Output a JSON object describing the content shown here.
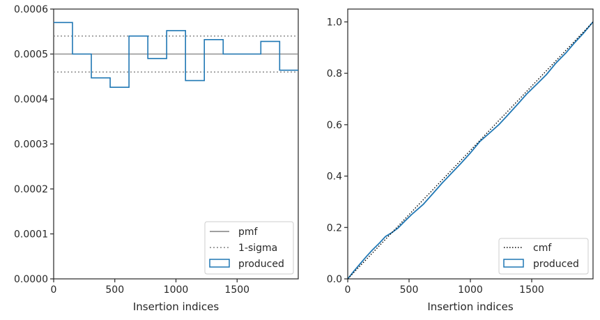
{
  "chart_data": [
    {
      "type": "histogram-step",
      "xlabel": "Insertion indices",
      "ylabel": "",
      "xlim": [
        0,
        2000
      ],
      "ylim": [
        0,
        0.0006
      ],
      "x_ticks": [
        0,
        500,
        1000,
        1500
      ],
      "x_tick_labels": [
        "0",
        "500",
        "1000",
        "1500"
      ],
      "y_ticks": [
        0,
        0.0001,
        0.0002,
        0.0003,
        0.0004,
        0.0005,
        0.0006
      ],
      "y_tick_labels": [
        "0.0000",
        "0.0001",
        "0.0002",
        "0.0003",
        "0.0004",
        "0.0005",
        "0.0006"
      ],
      "grid": false,
      "legend_position": "bottom-right",
      "legend": [
        "pmf",
        "1-sigma",
        "produced"
      ],
      "pmf": 0.0005,
      "sigma_band": [
        0.00046,
        0.00054
      ],
      "series": [
        {
          "name": "produced",
          "color": "#1f77b4",
          "bin_edges": [
            0,
            154,
            308,
            462,
            616,
            770,
            924,
            1078,
            1232,
            1386,
            1540,
            1694,
            1848,
            2002
          ],
          "values": [
            0.00057,
            0.0005,
            0.000447,
            0.000426,
            0.00054,
            0.00049,
            0.000552,
            0.000441,
            0.000532,
            0.0005,
            0.0005,
            0.000528,
            0.000464
          ]
        }
      ],
      "line_colors": {
        "pmf": "#808080",
        "sigma": "#808080"
      }
    },
    {
      "type": "line",
      "xlabel": "Insertion indices",
      "ylabel": "",
      "xlim": [
        0,
        2000
      ],
      "ylim": [
        0,
        1.05
      ],
      "x_ticks": [
        0,
        500,
        1000,
        1500
      ],
      "x_tick_labels": [
        "0",
        "500",
        "1000",
        "1500"
      ],
      "y_ticks": [
        0,
        0.2,
        0.4,
        0.6,
        0.8,
        1.0
      ],
      "y_tick_labels": [
        "0.0",
        "0.2",
        "0.4",
        "0.6",
        "0.8",
        "1.0"
      ],
      "grid": false,
      "legend_position": "bottom-right",
      "legend": [
        "cmf",
        "produced"
      ],
      "series": [
        {
          "name": "cmf",
          "color": "#000000",
          "style": "dotted",
          "x": [
            0,
            2000
          ],
          "y": [
            0,
            1.0
          ]
        },
        {
          "name": "produced",
          "color": "#1f77b4",
          "x": [
            0,
            50,
            100,
            154,
            200,
            260,
            308,
            360,
            410,
            462,
            520,
            616,
            700,
            770,
            850,
            924,
            1000,
            1078,
            1150,
            1232,
            1300,
            1386,
            1460,
            1540,
            1620,
            1694,
            1780,
            1848,
            1920,
            2000
          ],
          "y": [
            0,
            0.03,
            0.058,
            0.088,
            0.112,
            0.14,
            0.165,
            0.18,
            0.198,
            0.223,
            0.25,
            0.29,
            0.335,
            0.373,
            0.413,
            0.45,
            0.49,
            0.535,
            0.565,
            0.6,
            0.635,
            0.68,
            0.72,
            0.757,
            0.795,
            0.838,
            0.88,
            0.918,
            0.955,
            1.0
          ]
        }
      ]
    }
  ]
}
